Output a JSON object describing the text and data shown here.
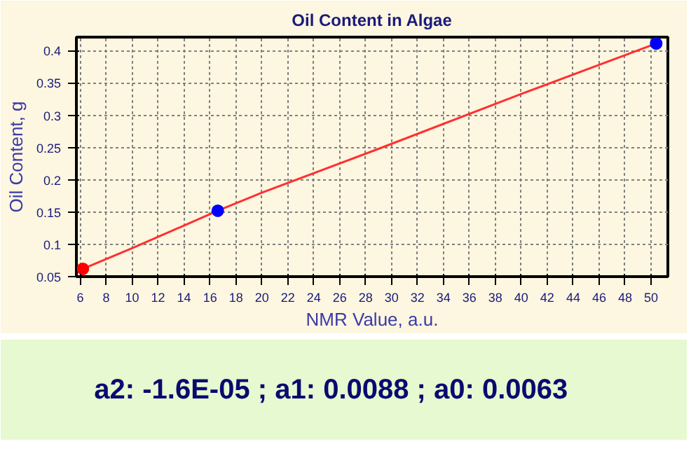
{
  "chart_data": {
    "type": "scatter",
    "title": "Oil Content in Algae",
    "xlabel": "NMR Value, a.u.",
    "ylabel": "Oil Content, g",
    "annotations": [
      "a2: -1.6E-05 ; a1: 0.0088 ; a0: 0.0063"
    ],
    "series": [
      {
        "type": "line",
        "color": "#ff3030",
        "x": [
          6.2,
          10,
          16.6,
          20,
          29,
          40,
          50.4
        ],
        "values": [
          0.062,
          0.094,
          0.152,
          0.18,
          0.248,
          0.333,
          0.411
        ],
        "marker": "none"
      },
      {
        "x": [
          6.2,
          16.6,
          50.4
        ],
        "values": [
          0.062,
          0.152,
          0.411
        ],
        "colors": [
          "#ff0000",
          "#0000ff",
          "#0000ff"
        ],
        "marker": "circle"
      }
    ],
    "xlim": [
      5.7,
      51.3
    ],
    "ylim": [
      0.05,
      0.421
    ],
    "xticks": [
      6,
      8,
      10,
      12,
      14,
      16,
      18,
      20,
      22,
      24,
      26,
      28,
      30,
      32,
      34,
      36,
      38,
      40,
      42,
      44,
      46,
      48,
      50
    ],
    "yticks": [
      0.05,
      0.1,
      0.15,
      0.2,
      0.25,
      0.3,
      0.35,
      0.4
    ],
    "grid": true
  }
}
